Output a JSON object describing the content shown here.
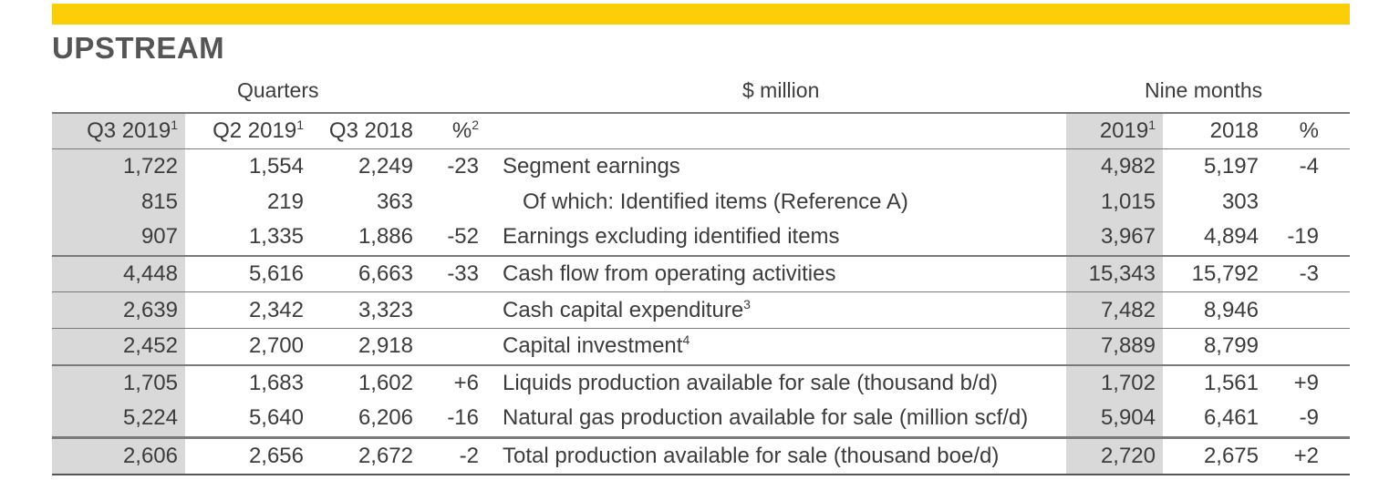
{
  "title": "UPSTREAM",
  "group_headers": {
    "quarters": "Quarters",
    "unit": "$ million",
    "nine_months": "Nine months"
  },
  "columns": [
    {
      "label": "Q3 2019",
      "sup": "1"
    },
    {
      "label": "Q2 2019",
      "sup": "1"
    },
    {
      "label": "Q3 2018",
      "sup": ""
    },
    {
      "label": "%",
      "sup": "2"
    },
    {
      "label": "",
      "sup": ""
    },
    {
      "label": "2019",
      "sup": "1"
    },
    {
      "label": "2018",
      "sup": ""
    },
    {
      "label": "%",
      "sup": ""
    }
  ],
  "rows": [
    {
      "q3_2019": "1,722",
      "q2_2019": "1,554",
      "q3_2018": "2,249",
      "pct_q": "-23",
      "label": "Segment earnings",
      "sup": "",
      "nm_2019": "4,982",
      "nm_2018": "5,197",
      "pct_nm": "-4"
    },
    {
      "q3_2019": "815",
      "q2_2019": "219",
      "q3_2018": "363",
      "pct_q": "",
      "label": "Of which: Identified items (Reference A)",
      "sup": "",
      "nm_2019": "1,015",
      "nm_2018": "303",
      "pct_nm": ""
    },
    {
      "q3_2019": "907",
      "q2_2019": "1,335",
      "q3_2018": "1,886",
      "pct_q": "-52",
      "label": "Earnings excluding identified items",
      "sup": "",
      "nm_2019": "3,967",
      "nm_2018": "4,894",
      "pct_nm": "-19"
    },
    {
      "q3_2019": "4,448",
      "q2_2019": "5,616",
      "q3_2018": "6,663",
      "pct_q": "-33",
      "label": "Cash flow from operating activities",
      "sup": "",
      "nm_2019": "15,343",
      "nm_2018": "15,792",
      "pct_nm": "-3"
    },
    {
      "q3_2019": "2,639",
      "q2_2019": "2,342",
      "q3_2018": "3,323",
      "pct_q": "",
      "label": "Cash capital expenditure",
      "sup": "3",
      "nm_2019": "7,482",
      "nm_2018": "8,946",
      "pct_nm": ""
    },
    {
      "q3_2019": "2,452",
      "q2_2019": "2,700",
      "q3_2018": "2,918",
      "pct_q": "",
      "label": "Capital investment",
      "sup": "4",
      "nm_2019": "7,889",
      "nm_2018": "8,799",
      "pct_nm": ""
    },
    {
      "q3_2019": "1,705",
      "q2_2019": "1,683",
      "q3_2018": "1,602",
      "pct_q": "+6",
      "label": "Liquids production available for sale (thousand b/d)",
      "sup": "",
      "nm_2019": "1,702",
      "nm_2018": "1,561",
      "pct_nm": "+9"
    },
    {
      "q3_2019": "5,224",
      "q2_2019": "5,640",
      "q3_2018": "6,206",
      "pct_q": "-16",
      "label": "Natural gas production available for sale (million scf/d)",
      "sup": "",
      "nm_2019": "5,904",
      "nm_2018": "6,461",
      "pct_nm": "-9"
    },
    {
      "q3_2019": "2,606",
      "q2_2019": "2,656",
      "q3_2018": "2,672",
      "pct_q": "-2",
      "label": "Total production available for sale (thousand boe/d)",
      "sup": "",
      "nm_2019": "2,720",
      "nm_2018": "2,675",
      "pct_nm": "+2"
    }
  ]
}
